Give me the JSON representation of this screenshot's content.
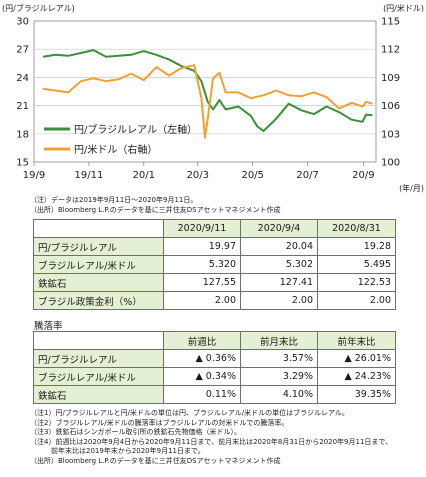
{
  "chart_data": {
    "type": "line",
    "left_axis_label": "(円/ブラジルレアル)",
    "right_axis_label": "(円/米ドル)",
    "x_unit_label": "(年/月)",
    "x_tick_labels": [
      "19/9",
      "19/11",
      "20/1",
      "20/3",
      "20/5",
      "20/7",
      "20/9"
    ],
    "y_left": {
      "min": 15,
      "max": 30,
      "ticks": [
        15,
        18,
        21,
        24,
        27,
        30
      ]
    },
    "y_right": {
      "min": 100,
      "max": 115,
      "ticks": [
        100,
        103,
        106,
        109,
        112,
        115
      ]
    },
    "grid": true,
    "legend_position": "bottom-left",
    "series": [
      {
        "name": "円/ブラジルレアル（左軸）",
        "axis": "left",
        "color": "#3a8f3a",
        "x": [
          "2019-09-11",
          "2019-09-25",
          "2019-10-09",
          "2019-10-23",
          "2019-11-06",
          "2019-11-20",
          "2019-12-04",
          "2019-12-18",
          "2020-01-01",
          "2020-01-15",
          "2020-01-29",
          "2020-02-12",
          "2020-02-26",
          "2020-03-05",
          "2020-03-12",
          "2020-03-18",
          "2020-03-25",
          "2020-04-01",
          "2020-04-15",
          "2020-04-29",
          "2020-05-06",
          "2020-05-13",
          "2020-05-27",
          "2020-06-10",
          "2020-06-24",
          "2020-07-08",
          "2020-07-22",
          "2020-08-05",
          "2020-08-19",
          "2020-08-31",
          "2020-09-04",
          "2020-09-11"
        ],
        "y": [
          26.2,
          26.4,
          26.3,
          26.6,
          26.9,
          26.2,
          26.3,
          26.4,
          26.8,
          26.4,
          25.9,
          25.2,
          24.7,
          23.6,
          21.4,
          20.6,
          21.6,
          20.6,
          20.9,
          19.9,
          18.8,
          18.3,
          19.6,
          21.2,
          20.5,
          20.1,
          20.9,
          20.3,
          19.5,
          19.28,
          20.04,
          19.97
        ]
      },
      {
        "name": "円/米ドル（右軸）",
        "axis": "right",
        "color": "#f0a030",
        "x": [
          "2019-09-11",
          "2019-09-25",
          "2019-10-09",
          "2019-10-23",
          "2019-11-06",
          "2019-11-20",
          "2019-12-04",
          "2019-12-18",
          "2020-01-01",
          "2020-01-15",
          "2020-01-29",
          "2020-02-12",
          "2020-02-26",
          "2020-03-05",
          "2020-03-09",
          "2020-03-12",
          "2020-03-18",
          "2020-03-25",
          "2020-04-01",
          "2020-04-15",
          "2020-04-29",
          "2020-05-13",
          "2020-05-27",
          "2020-06-10",
          "2020-06-24",
          "2020-07-08",
          "2020-07-22",
          "2020-08-05",
          "2020-08-19",
          "2020-08-31",
          "2020-09-04",
          "2020-09-11"
        ],
        "y": [
          107.8,
          107.6,
          107.4,
          108.6,
          108.9,
          108.6,
          108.8,
          109.4,
          108.7,
          110.1,
          109.2,
          110.0,
          110.3,
          106.8,
          102.6,
          104.6,
          108.9,
          109.5,
          107.4,
          107.4,
          106.8,
          107.1,
          107.6,
          107.1,
          107.0,
          107.4,
          106.9,
          105.7,
          106.3,
          105.9,
          106.4,
          106.2
        ]
      }
    ]
  },
  "chart_notes": [
    "（注）データは2019年9月11日～2020年9月11日。",
    "（出所）Bloomberg L.P.のデータを基に三井住友DSアセットマネジメント作成"
  ],
  "table1": {
    "columns": [
      "2020/9/11",
      "2020/9/4",
      "2020/8/31"
    ],
    "rows": [
      {
        "label": "円/ブラジルレアル",
        "values": [
          "19.97",
          "20.04",
          "19.28"
        ]
      },
      {
        "label": "ブラジルレアル/米ドル",
        "values": [
          "5.320",
          "5.302",
          "5.495"
        ]
      },
      {
        "label": "鉄鉱石",
        "values": [
          "127.55",
          "127.41",
          "122.53"
        ]
      },
      {
        "label": "ブラジル政策金利（%）",
        "values": [
          "2.00",
          "2.00",
          "2.00"
        ]
      }
    ]
  },
  "table2": {
    "title": "騰落率",
    "columns": [
      "前週比",
      "前月末比",
      "前年末比"
    ],
    "rows": [
      {
        "label": "円/ブラジルレアル",
        "values": [
          "▲ 0.36%",
          "3.57%",
          "▲ 26.01%"
        ]
      },
      {
        "label": "ブラジルレアル/米ドル",
        "values": [
          "▲ 0.34%",
          "3.29%",
          "▲ 24.23%"
        ]
      },
      {
        "label": "鉄鉱石",
        "values": [
          "0.11%",
          "4.10%",
          "39.35%"
        ]
      }
    ]
  },
  "footnotes": [
    "（注1）円/ブラジルレアルと円/米ドルの単位は円、ブラジルレアル/米ドルの単位はブラジルレアル。",
    "（注2）ブラジルレアル/米ドルの騰落率はブラジルレアルの対米ドルでの騰落率。",
    "（注3）鉄鉱石はシンガポール取引所の鉄鉱石先物価格（米ドル）。",
    "（注4）前週比は2020年9月4日から2020年9月11日まで、前月末比は2020年8月31日から2020年9月11日まで、",
    "　　　前年末比は2019年末から2020年9月11日まで。",
    "（出所）Bloomberg L.P.のデータを基に三井住友DSアセットマネジメント作成"
  ]
}
